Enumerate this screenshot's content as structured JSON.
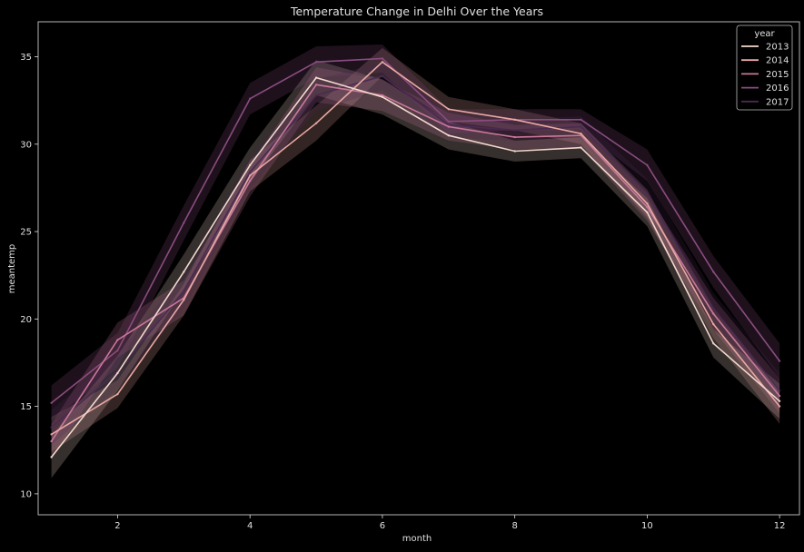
{
  "chart_data": {
    "type": "line",
    "title": "Temperature Change in Delhi Over the Years",
    "xlabel": "month",
    "ylabel": "meantemp",
    "xlim": [
      0.8,
      12.3
    ],
    "ylim": [
      8.8,
      37
    ],
    "xticks": [
      2,
      4,
      6,
      8,
      10,
      12
    ],
    "yticks": [
      10,
      15,
      20,
      25,
      30,
      35
    ],
    "x": [
      1,
      2,
      3,
      4,
      5,
      6,
      7,
      8,
      9,
      10,
      11,
      12
    ],
    "legend": {
      "title": "year",
      "position": "top-right"
    },
    "confidence_band": "shaded band around each series",
    "series": [
      {
        "name": "2013",
        "color": "#f2d8cd",
        "values": [
          12.1,
          16.9,
          22.7,
          28.8,
          33.8,
          32.7,
          30.5,
          29.6,
          29.8,
          26.1,
          18.6,
          15.3
        ],
        "band": [
          1.2,
          1.0,
          1.0,
          1.0,
          1.0,
          1.0,
          0.8,
          0.6,
          0.6,
          0.8,
          0.8,
          1.0
        ]
      },
      {
        "name": "2014",
        "color": "#e9a9a3",
        "values": [
          13.4,
          15.7,
          21.1,
          28.2,
          31.2,
          34.7,
          32.0,
          31.4,
          30.6,
          26.6,
          19.7,
          15.0
        ],
        "band": [
          1.0,
          0.8,
          0.9,
          0.9,
          1.0,
          0.8,
          0.7,
          0.6,
          0.6,
          0.8,
          0.8,
          1.0
        ]
      },
      {
        "name": "2015",
        "color": "#c9789a",
        "values": [
          13.0,
          18.8,
          21.2,
          27.9,
          33.4,
          32.8,
          31.0,
          30.4,
          30.5,
          26.4,
          20.3,
          15.6
        ],
        "band": [
          1.0,
          1.0,
          1.0,
          0.9,
          1.0,
          0.9,
          0.8,
          0.7,
          0.7,
          0.8,
          0.9,
          1.0
        ]
      },
      {
        "name": "2016",
        "color": "#8a4d80",
        "values": [
          15.2,
          18.2,
          25.5,
          32.6,
          34.7,
          34.9,
          31.3,
          31.4,
          31.4,
          28.8,
          22.7,
          17.6
        ],
        "band": [
          1.0,
          1.0,
          1.0,
          0.9,
          0.9,
          0.8,
          0.7,
          0.6,
          0.6,
          0.9,
          0.9,
          1.0
        ]
      },
      {
        "name": "2017",
        "color": "#4a2a52",
        "values": [
          13.8,
          17.0,
          21.6,
          28.4,
          32.8,
          33.9,
          31.1,
          30.8,
          31.0,
          27.2,
          20.6,
          15.9
        ],
        "band": [
          1.0,
          1.0,
          1.0,
          0.9,
          0.9,
          0.8,
          0.7,
          0.6,
          0.6,
          0.8,
          0.9,
          1.0
        ]
      }
    ]
  }
}
